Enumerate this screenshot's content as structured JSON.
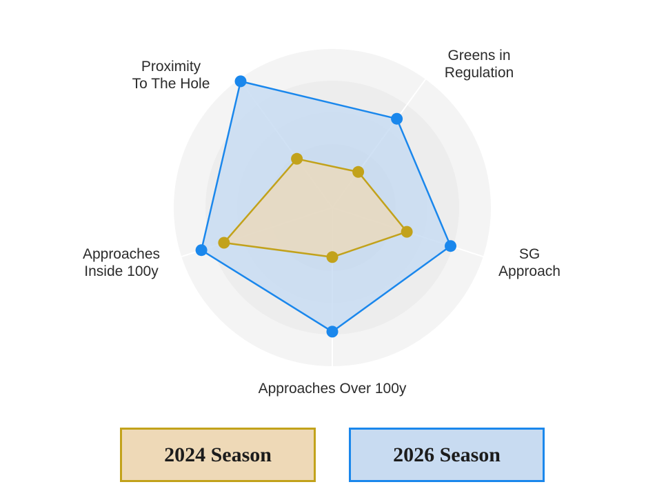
{
  "chart_data": {
    "type": "radar",
    "axes": [
      "Greens in Regulation",
      "SG Approach",
      "Approaches Over 100y",
      "Approaches Inside 100y",
      "Proximity To The Hole"
    ],
    "axis_label_lines": [
      [
        "Greens in",
        "Regulation"
      ],
      [
        "SG",
        "Approach"
      ],
      [
        "Approaches Over 100y"
      ],
      [
        "Approaches",
        "Inside 100y"
      ],
      [
        "Proximity",
        "To The Hole"
      ]
    ],
    "rlim": [
      0,
      5
    ],
    "grid": true,
    "legend_position": "bottom",
    "series": [
      {
        "name": "2024 Season",
        "values": [
          1.39,
          2.47,
          1.56,
          3.59,
          1.9
        ],
        "color": "#c2a21b",
        "fill": "#ead9bd"
      },
      {
        "name": "2026 Season",
        "values": [
          3.46,
          3.92,
          3.91,
          4.34,
          4.92
        ],
        "color": "#1a87ec",
        "fill": "#c8dcf2"
      }
    ]
  },
  "legend": [
    {
      "label": "2024 Season",
      "border": "#c2a21b",
      "background": "#eed9b7"
    },
    {
      "label": "2026 Season",
      "border": "#1a87ec",
      "background": "#c8dbf1"
    }
  ]
}
